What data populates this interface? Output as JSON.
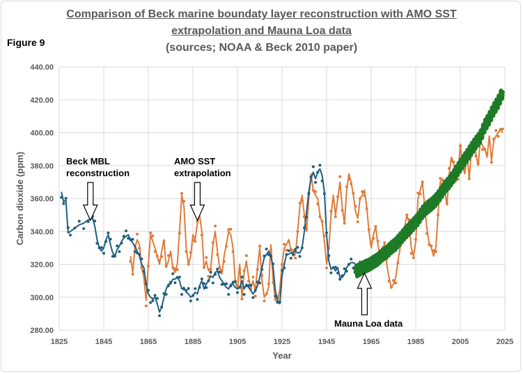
{
  "figure_label": "Figure 9",
  "title_line1": "Comparison of Beck marine boundaty layer reconstruction with AMO SST",
  "title_line2": "extrapolation and Mauna Loa data",
  "title_line3": "(sources; NOAA & Beck 2010 paper)",
  "colors": {
    "beck": "#1f5f7f",
    "amo": "#e07b39",
    "mauna": "#1e7a26",
    "grid": "#d9d9d9",
    "axis_text": "#595959"
  },
  "chart_data": {
    "type": "line",
    "xlabel": "Year",
    "ylabel": "Carbon dioxide (ppm)",
    "xlim": [
      1825,
      2025
    ],
    "ylim": [
      280,
      440
    ],
    "x_ticks": [
      1825,
      1845,
      1865,
      1885,
      1905,
      1925,
      1945,
      1965,
      1985,
      2005,
      2025
    ],
    "y_ticks": [
      "280.00",
      "300.00",
      "320.00",
      "340.00",
      "360.00",
      "380.00",
      "400.00",
      "420.00",
      "440.00"
    ],
    "grid": "vertical and horizontal",
    "annotations": [
      {
        "text_lines": [
          "Beck MBL",
          "reconstruction"
        ],
        "arrow_to": [
          1839,
          348
        ]
      },
      {
        "text_lines": [
          "AMO SST",
          "extrapolation"
        ],
        "arrow_to": [
          1887,
          348
        ]
      },
      {
        "text_lines": [
          "Mauna Loa data"
        ],
        "arrow_to": [
          1962,
          316
        ]
      }
    ],
    "series": [
      {
        "key": "beck",
        "style": "line+markers",
        "x": [
          1826,
          1827,
          1828,
          1829,
          1830,
          1832,
          1834,
          1836,
          1838,
          1840,
          1841,
          1842,
          1843,
          1844,
          1845,
          1846,
          1847,
          1848,
          1849,
          1850,
          1851,
          1852,
          1853,
          1854,
          1855,
          1856,
          1857,
          1858,
          1859,
          1860,
          1861,
          1862,
          1863,
          1864,
          1865,
          1866,
          1867,
          1868,
          1869,
          1870,
          1871,
          1872,
          1873,
          1874,
          1875,
          1876,
          1877,
          1878,
          1879,
          1880,
          1881,
          1882,
          1883,
          1884,
          1885,
          1886,
          1887,
          1888,
          1889,
          1890,
          1891,
          1892,
          1893,
          1894,
          1895,
          1896,
          1897,
          1898,
          1899,
          1900,
          1901,
          1902,
          1903,
          1904,
          1905,
          1906,
          1907,
          1908,
          1909,
          1910,
          1911,
          1912,
          1913,
          1914,
          1915,
          1916,
          1917,
          1918,
          1919,
          1920,
          1921,
          1922,
          1923,
          1924,
          1925,
          1926,
          1927,
          1928,
          1929,
          1930,
          1931,
          1932,
          1933,
          1934,
          1935,
          1936,
          1937,
          1938,
          1939,
          1940,
          1941,
          1942,
          1943,
          1944,
          1945,
          1946,
          1947,
          1948,
          1949,
          1950,
          1951,
          1952,
          1953,
          1954,
          1955,
          1956,
          1957,
          1958,
          1959,
          1960
        ],
        "y": [
          364,
          358,
          359,
          339,
          340,
          342,
          344,
          345,
          347,
          348,
          343,
          335,
          330,
          328,
          330,
          335,
          338,
          332,
          327,
          325,
          329,
          331,
          334,
          336,
          337,
          338,
          335,
          333,
          331,
          328,
          325,
          320,
          318,
          308,
          302,
          300,
          299,
          300,
          296,
          291,
          294,
          300,
          305,
          308,
          308,
          311,
          311,
          312,
          310,
          305,
          306,
          303,
          302,
          300,
          301,
          303,
          302,
          307,
          310,
          305,
          308,
          310,
          313,
          312,
          315,
          316,
          312,
          310,
          308,
          306,
          305,
          308,
          308,
          306,
          305,
          306,
          310,
          305,
          308,
          306,
          304,
          302,
          304,
          307,
          312,
          318,
          324,
          326,
          328,
          325,
          318,
          304,
          298,
          296,
          313,
          320,
          326,
          326,
          327,
          327,
          328,
          327,
          327,
          330,
          340,
          352,
          364,
          372,
          376,
          372,
          376,
          378,
          374,
          364,
          338,
          322,
          317,
          318,
          316,
          318,
          312,
          312,
          314,
          318,
          320,
          321,
          321,
          320,
          319,
          318
        ]
      },
      {
        "key": "amo",
        "style": "line+markers",
        "x": [
          1857,
          1858,
          1859,
          1860,
          1861,
          1862,
          1863,
          1864,
          1865,
          1866,
          1867,
          1868,
          1869,
          1870,
          1871,
          1872,
          1873,
          1874,
          1875,
          1876,
          1877,
          1878,
          1879,
          1880,
          1881,
          1882,
          1883,
          1884,
          1885,
          1886,
          1887,
          1888,
          1889,
          1890,
          1891,
          1892,
          1893,
          1894,
          1895,
          1896,
          1897,
          1898,
          1899,
          1900,
          1901,
          1902,
          1903,
          1904,
          1905,
          1906,
          1907,
          1908,
          1909,
          1910,
          1911,
          1912,
          1913,
          1914,
          1915,
          1916,
          1917,
          1918,
          1919,
          1920,
          1921,
          1922,
          1923,
          1924,
          1925,
          1926,
          1927,
          1928,
          1929,
          1930,
          1931,
          1932,
          1933,
          1934,
          1935,
          1936,
          1937,
          1938,
          1939,
          1940,
          1941,
          1942,
          1943,
          1944,
          1945,
          1946,
          1947,
          1948,
          1949,
          1950,
          1951,
          1952,
          1953,
          1954,
          1955,
          1956,
          1957,
          1958,
          1959,
          1960,
          1961,
          1962,
          1963,
          1964,
          1965,
          1966,
          1967,
          1968,
          1969,
          1970,
          1971,
          1972,
          1973,
          1974,
          1975,
          1976,
          1977,
          1978,
          1979,
          1980,
          1981,
          1982,
          1983,
          1984,
          1985,
          1986,
          1987,
          1988,
          1989,
          1990,
          1991,
          1992,
          1993,
          1994,
          1995,
          1996,
          1997,
          1998,
          1999,
          2000,
          2001,
          2002,
          2003,
          2004,
          2005,
          2006,
          2007,
          2008,
          2009,
          2010,
          2011,
          2012,
          2013,
          2014,
          2015,
          2016,
          2017,
          2018,
          2019,
          2020,
          2021,
          2022,
          2023,
          2024
        ],
        "y": [
          325,
          315,
          330,
          335,
          332,
          318,
          312,
          298,
          320,
          338,
          334,
          330,
          325,
          320,
          328,
          335,
          318,
          322,
          328,
          318,
          315,
          320,
          340,
          362,
          355,
          330,
          320,
          325,
          338,
          335,
          345,
          350,
          340,
          318,
          322,
          316,
          318,
          332,
          340,
          328,
          318,
          314,
          325,
          332,
          340,
          338,
          330,
          310,
          305,
          320,
          300,
          315,
          322,
          312,
          305,
          310,
          304,
          318,
          330,
          310,
          300,
          302,
          306,
          332,
          310,
          298,
          297,
          305,
          320,
          330,
          332,
          335,
          328,
          325,
          326,
          340,
          355,
          362,
          350,
          340,
          360,
          375,
          365,
          362,
          360,
          350,
          345,
          334,
          320,
          330,
          350,
          362,
          350,
          360,
          370,
          355,
          345,
          365,
          375,
          370,
          362,
          352,
          348,
          360,
          362,
          365,
          355,
          340,
          330,
          338,
          343,
          332,
          325,
          330,
          332,
          320,
          312,
          306,
          308,
          312,
          322,
          330,
          335,
          342,
          350,
          345,
          330,
          325,
          334,
          360,
          365,
          370,
          355,
          342,
          333,
          330,
          325,
          330,
          350,
          370,
          372,
          365,
          356,
          375,
          385,
          382,
          370,
          375,
          393,
          380,
          375,
          387,
          372,
          390,
          395,
          387,
          380,
          395,
          392,
          390,
          385,
          398,
          383,
          395,
          398,
          400,
          402,
          400
        ]
      },
      {
        "key": "mauna",
        "style": "dense-markers",
        "note": "monthly values with seasonal cycle",
        "x": [
          1958,
          1960,
          1962,
          1964,
          1966,
          1968,
          1970,
          1972,
          1974,
          1976,
          1978,
          1980,
          1982,
          1984,
          1986,
          1988,
          1990,
          1992,
          1994,
          1996,
          1998,
          2000,
          2002,
          2004,
          2006,
          2008,
          2010,
          2012,
          2014,
          2016,
          2018,
          2020,
          2022,
          2024
        ],
        "y": [
          315.3,
          316.9,
          318.6,
          319.6,
          321.4,
          323.0,
          325.7,
          327.5,
          330.2,
          332.2,
          335.4,
          338.7,
          341.4,
          344.4,
          347.4,
          351.6,
          354.4,
          356.4,
          359.0,
          362.6,
          366.8,
          369.7,
          373.5,
          377.9,
          382.1,
          385.8,
          390.1,
          394.0,
          397.4,
          404.2,
          408.7,
          414.2,
          418.6,
          424.6
        ],
        "seasonal_amplitude": 3.2
      }
    ]
  }
}
